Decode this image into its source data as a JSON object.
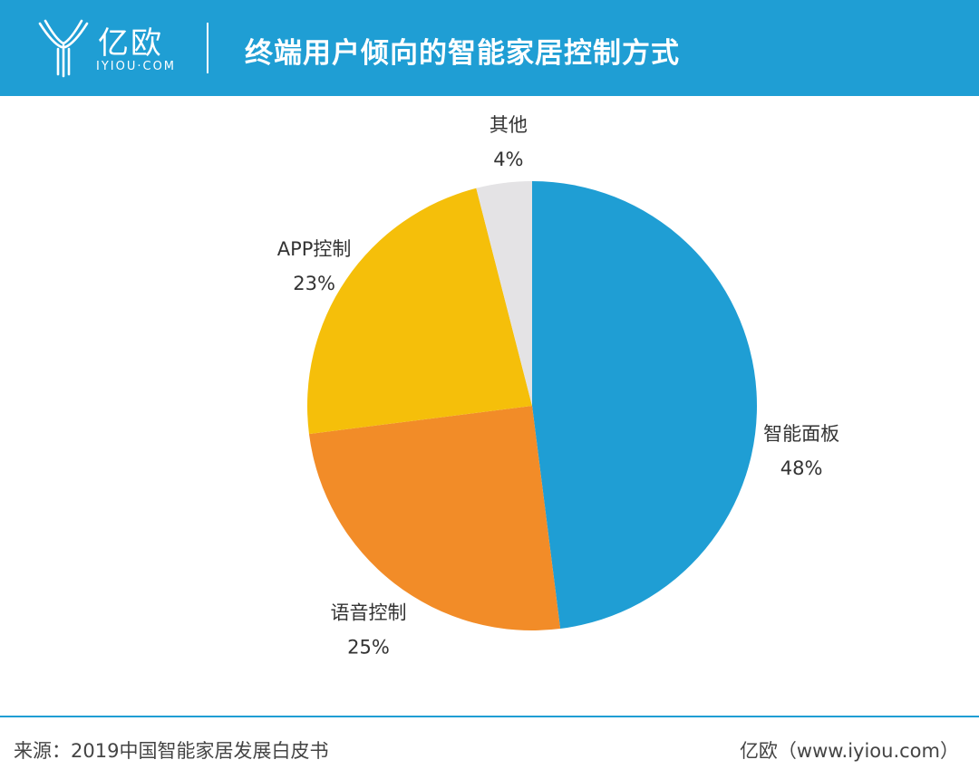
{
  "header": {
    "logo_name": "亿欧",
    "logo_domain": "IYIOU·COM",
    "title": "终端用户倾向的智能家居控制方式"
  },
  "chart_data": {
    "type": "pie",
    "title": "终端用户倾向的智能家居控制方式",
    "slices": [
      {
        "label": "智能面板",
        "value": 48,
        "value_label": "48%",
        "color": "#1f9ed4"
      },
      {
        "label": "语音控制",
        "value": 25,
        "value_label": "25%",
        "color": "#f28c28"
      },
      {
        "label": "APP控制",
        "value": 23,
        "value_label": "23%",
        "color": "#f5bf0a"
      },
      {
        "label": "其他",
        "value": 4,
        "value_label": "4%",
        "color": "#e4e3e5"
      }
    ]
  },
  "footer": {
    "source": "来源：2019中国智能家居发展白皮书",
    "credit": "亿欧（www.iyiou.com）"
  }
}
